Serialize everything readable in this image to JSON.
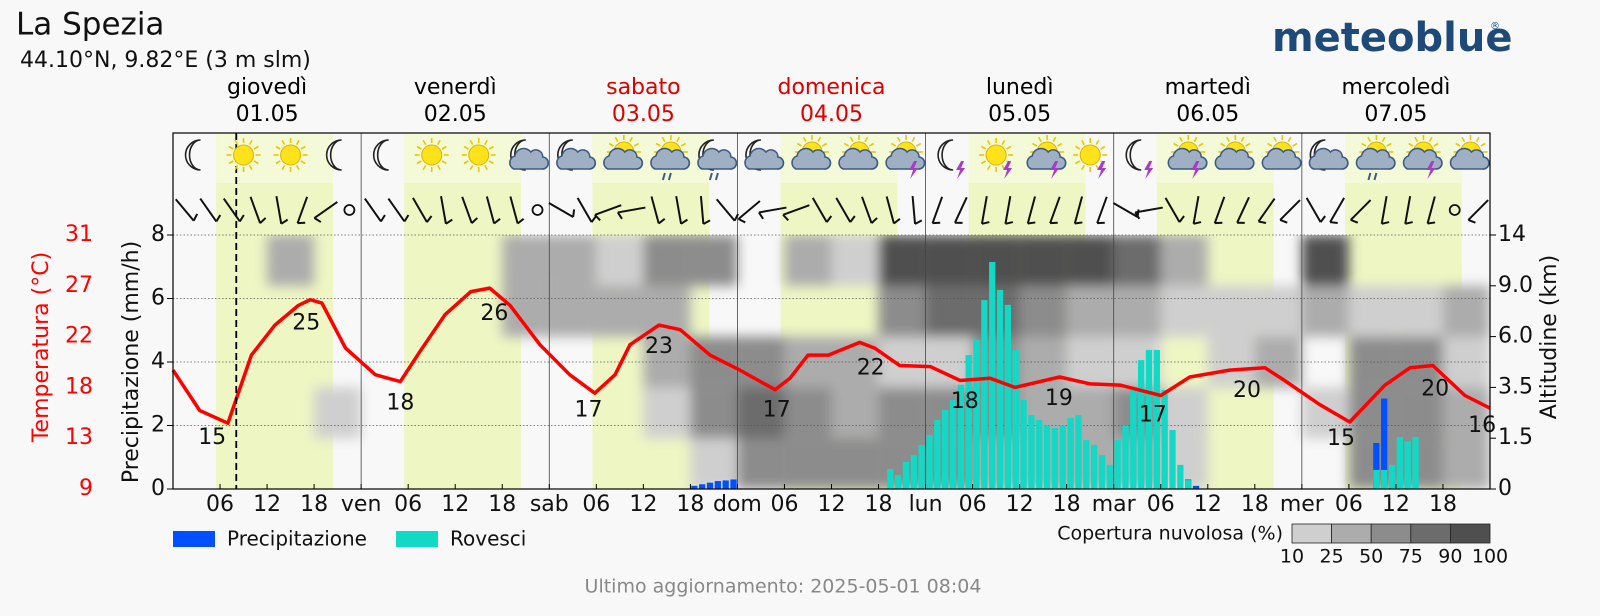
{
  "chart_data": {
    "type": "meteogram",
    "title": "La Spezia",
    "subtitle": "44.10°N, 9.82°E (3 m slm)",
    "logo": "meteoblue",
    "logo_mark": "®",
    "days": [
      {
        "name": "giovedì",
        "date": "01.05",
        "color": "#000000"
      },
      {
        "name": "venerdì",
        "date": "02.05",
        "color": "#000000"
      },
      {
        "name": "sabato",
        "date": "03.05",
        "color": "#dd0000"
      },
      {
        "name": "domenica",
        "date": "04.05",
        "color": "#dd0000"
      },
      {
        "name": "lunedì",
        "date": "05.05",
        "color": "#000000"
      },
      {
        "name": "martedì",
        "date": "06.05",
        "color": "#000000"
      },
      {
        "name": "mercoledì",
        "date": "07.05",
        "color": "#000000"
      }
    ],
    "xlim": [
      0,
      168
    ],
    "xticks": [
      {
        "value": 6,
        "label": "06"
      },
      {
        "value": 12,
        "label": "12"
      },
      {
        "value": 18,
        "label": "18"
      },
      {
        "value": 24,
        "label": "ven"
      },
      {
        "value": 30,
        "label": "06"
      },
      {
        "value": 36,
        "label": "12"
      },
      {
        "value": 42,
        "label": "18"
      },
      {
        "value": 48,
        "label": "sab"
      },
      {
        "value": 54,
        "label": "06"
      },
      {
        "value": 60,
        "label": "12"
      },
      {
        "value": 66,
        "label": "18"
      },
      {
        "value": 72,
        "label": "dom"
      },
      {
        "value": 78,
        "label": "06"
      },
      {
        "value": 84,
        "label": "12"
      },
      {
        "value": 90,
        "label": "18"
      },
      {
        "value": 96,
        "label": "lun"
      },
      {
        "value": 102,
        "label": "06"
      },
      {
        "value": 108,
        "label": "12"
      },
      {
        "value": 114,
        "label": "18"
      },
      {
        "value": 120,
        "label": "mar"
      },
      {
        "value": 126,
        "label": "06"
      },
      {
        "value": 132,
        "label": "12"
      },
      {
        "value": 138,
        "label": "18"
      },
      {
        "value": 144,
        "label": "mer"
      },
      {
        "value": 150,
        "label": "06"
      },
      {
        "value": 156,
        "label": "12"
      },
      {
        "value": 162,
        "label": "18"
      }
    ],
    "ylabel": "Precipitazione (mm/h)",
    "ylim": [
      0,
      8
    ],
    "yticks": [
      0,
      2,
      4,
      6,
      8
    ],
    "grid": true,
    "y2label": "Temperatura (°C)",
    "y2color": "#ff0000",
    "y2lim": [
      9,
      31
    ],
    "y2ticks": [
      9,
      {
        "value": 13.4,
        "label": "13"
      },
      {
        "value": 17.8,
        "label": "18"
      },
      {
        "value": 22.2,
        "label": "22"
      },
      {
        "value": 26.6,
        "label": "27"
      },
      31
    ],
    "altitude_label": "Altitudine (km)",
    "altitude_ticks": [
      0,
      1.5,
      3.5,
      {
        "value": 6,
        "label": "6.0"
      },
      {
        "value": 9,
        "label": "9.0"
      },
      14
    ],
    "daylight": [
      [
        5.5,
        20.4
      ],
      [
        29.5,
        44.4
      ],
      [
        53.5,
        68.4
      ],
      [
        77.5,
        92.4
      ],
      [
        101.5,
        116.4
      ],
      [
        125.5,
        140.4
      ],
      [
        149.5,
        164.4
      ]
    ],
    "now": 8.07,
    "series": [
      {
        "name": "Precipitazione",
        "color": "#0050ff",
        "x": [
          66,
          67,
          68,
          69,
          70,
          71,
          129,
          130,
          153,
          154
        ],
        "values": [
          0.1,
          0.15,
          0.2,
          0.25,
          0.27,
          0.3,
          0.3,
          0.1,
          1.45,
          2.85
        ]
      },
      {
        "name": "Rovesci",
        "color": "#12d9c6",
        "x": [
          91,
          92,
          93,
          94,
          95,
          96,
          97,
          98,
          99,
          100,
          101,
          102,
          103,
          104,
          105,
          106,
          107,
          108,
          109,
          110,
          111,
          112,
          113,
          114,
          115,
          116,
          117,
          118,
          119,
          120,
          121,
          122,
          123,
          124,
          125,
          126,
          127,
          128,
          129,
          153,
          154,
          155,
          156,
          157,
          158
        ],
        "values": [
          0.63,
          0.44,
          0.85,
          1.07,
          1.39,
          1.7,
          2.17,
          2.49,
          2.8,
          3.28,
          4.22,
          4.69,
          5.95,
          7.15,
          6.27,
          5.8,
          4.38,
          2.8,
          2.33,
          2.17,
          2.0,
          1.92,
          2.0,
          2.24,
          2.33,
          1.54,
          1.39,
          1.07,
          0.76,
          1.54,
          2.0,
          3.12,
          4.06,
          4.38,
          4.38,
          3.12,
          1.86,
          0.76,
          0.28,
          0.6,
          0.6,
          0.76,
          1.64,
          1.5,
          1.64
        ]
      }
    ],
    "temperature": {
      "color": "#ff0000",
      "x": [
        0,
        3.4,
        7,
        10,
        13,
        16,
        17.5,
        19,
        22,
        25.8,
        29,
        31.5,
        34.7,
        38,
        40.4,
        43,
        46.8,
        50.6,
        53.8,
        56.4,
        58.3,
        62,
        64.7,
        68.5,
        72.3,
        76.8,
        78.7,
        81,
        83.6,
        87.6,
        89.5,
        92.7,
        96.6,
        100.4,
        104.2,
        107.4,
        113.1,
        117,
        120.8,
        126,
        129.7,
        134.8,
        139.3,
        141.8,
        146.3,
        150.1,
        154.6,
        157.8,
        160.7,
        164.8,
        168
      ],
      "values": [
        19.3,
        15.8,
        14.7,
        20.6,
        23.2,
        24.9,
        25.4,
        25.1,
        21.2,
        18.9,
        18.3,
        20.9,
        24.1,
        26.1,
        26.4,
        24.9,
        21.5,
        18.9,
        17.3,
        18.9,
        21.5,
        23.2,
        22.8,
        20.6,
        19.3,
        17.6,
        18.6,
        20.6,
        20.6,
        21.7,
        21.2,
        19.7,
        19.6,
        18.4,
        18.6,
        17.8,
        18.7,
        18.1,
        18.0,
        17.1,
        18.7,
        19.3,
        19.5,
        18.4,
        16.3,
        14.8,
        18.0,
        19.5,
        19.7,
        17.1,
        16.0
      ],
      "labels": {
        "x": [
          5,
          17,
          29,
          41,
          53,
          62,
          77,
          89,
          101,
          113,
          125,
          137,
          149,
          161,
          167
        ],
        "values": [
          15,
          25,
          18,
          26,
          17,
          23,
          17,
          22,
          18,
          19,
          17,
          20,
          15,
          20,
          16
        ]
      }
    },
    "cloud_cover": {
      "label": "Copertura nuvolosa (%)",
      "x": [
        0,
        6,
        12,
        18,
        24,
        30,
        36,
        42,
        48,
        54,
        60,
        66,
        72,
        78,
        84,
        90,
        96,
        102,
        108,
        114,
        120,
        126,
        132,
        138,
        144,
        150,
        156,
        162
      ],
      "rows": [
        [
          0,
          0,
          0,
          0,
          0,
          0,
          0,
          0,
          0,
          0,
          0,
          20,
          70,
          60,
          60,
          60,
          60,
          40,
          40,
          30,
          30,
          20,
          0,
          0,
          0,
          50,
          60,
          30
        ],
        [
          0,
          0,
          0,
          15,
          0,
          0,
          0,
          0,
          0,
          0,
          20,
          70,
          80,
          70,
          40,
          70,
          60,
          60,
          40,
          30,
          50,
          20,
          0,
          0,
          20,
          70,
          70,
          40
        ],
        [
          0,
          0,
          0,
          0,
          0,
          0,
          0,
          0,
          0,
          0,
          30,
          60,
          50,
          30,
          40,
          20,
          20,
          50,
          30,
          20,
          20,
          0,
          20,
          30,
          0,
          60,
          50,
          20
        ],
        [
          0,
          0,
          0,
          0,
          0,
          0,
          0,
          40,
          40,
          40,
          30,
          0,
          0,
          0,
          0,
          60,
          80,
          85,
          70,
          40,
          30,
          20,
          10,
          20,
          40,
          10,
          20,
          40
        ],
        [
          0,
          0,
          30,
          0,
          0,
          0,
          0,
          40,
          30,
          20,
          70,
          60,
          0,
          40,
          20,
          90,
          95,
          95,
          95,
          90,
          85,
          30,
          0,
          0,
          90,
          0,
          0,
          0
        ]
      ],
      "levels": [
        10,
        25,
        50,
        75,
        90,
        100
      ],
      "colors": [
        "#cfcfcf",
        "#acacac",
        "#8c8c8c",
        "#6c6c6c",
        "#4f4f4f"
      ]
    },
    "icons": [
      "moon",
      "sun",
      "sun",
      "moon",
      "moon",
      "sun",
      "sun",
      "moon-cloud",
      "moon-cloud",
      "sun-cloud",
      "sun-cloud-rain",
      "moon-cloud-rain",
      "moon-cloud",
      "sun-cloud",
      "sun-cloud",
      "sun-cloud-storm",
      "moon-storm",
      "sun-storm",
      "sun-cloud-storm",
      "sun-storm",
      "moon-storm",
      "sun-cloud-storm",
      "sun-cloud",
      "sun-cloud",
      "moon-cloud",
      "sun-cloud-rain",
      "sun-cloud-storm",
      "sun-cloud"
    ],
    "wind_tilt": [
      40,
      35,
      35,
      20,
      10,
      -20,
      -55,
      null,
      35,
      35,
      30,
      10,
      20,
      15,
      15,
      null,
      60,
      30,
      -70,
      -80,
      15,
      10,
      5,
      40,
      -50,
      -80,
      -70,
      30,
      30,
      20,
      15,
      5,
      -20,
      -25,
      -10,
      -10,
      -15,
      -20,
      -15,
      -20,
      60,
      -80,
      30,
      -10,
      -20,
      -25,
      -35,
      -45,
      30,
      -30,
      -45,
      -10,
      -10,
      -15,
      null,
      -45
    ],
    "footer": "Ultimo aggiornamento: 2025-05-01 08:04"
  }
}
